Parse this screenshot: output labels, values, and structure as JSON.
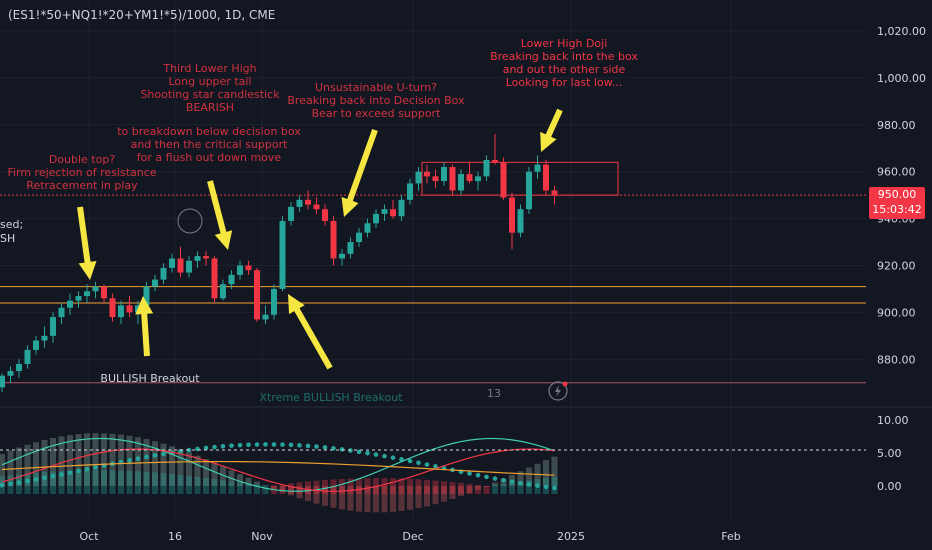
{
  "symbol": "(ES1!*50+NQ1!*20+YM1!*5)/1000, 1D, CME",
  "price_axis": [
    "1,020.00",
    "1,000.00",
    "980.00",
    "960.00",
    "940.00",
    "920.00",
    "900.00",
    "880.00"
  ],
  "price_badge": {
    "price": "950.00",
    "countdown": "15:03:42"
  },
  "osc_axis": [
    "10.00",
    "5.00",
    "0.00"
  ],
  "time_axis": [
    "Oct",
    "16",
    "Nov",
    "Dec",
    "2025",
    "Feb"
  ],
  "cut_text": [
    "sed;",
    "SH"
  ],
  "annotations": {
    "double_top": [
      "Double top?",
      "Firm rejection of resistance",
      "Retracement in play"
    ],
    "breakdown": [
      "to breakdown below decision box",
      "and then the critical support",
      "for a flush out down move"
    ],
    "third_lower_high": [
      "Third Lower High",
      "Long upper tail",
      "Shooting star candlestick",
      "BEARISH"
    ],
    "u_turn": [
      "Unsustainable U-turn?",
      "Breaking back into Decision Box",
      "Bear to exceed support"
    ],
    "doji": [
      "Lower High Doji",
      "Breaking back into the box",
      "and out the other side",
      "Looking for last low..."
    ],
    "bullish_breakout": "BULLISH Breakout",
    "xtreme_breakout": "Xtreme BULLISH Breakout",
    "bar_count": "13"
  },
  "colors": {
    "bull": "#26a69a",
    "bear": "#f23645",
    "level": "#f0a030",
    "arrow": "#f5e642",
    "bg": "#131722"
  },
  "chart_data": {
    "type": "candlestick",
    "ylim": [
      865,
      1025
    ],
    "levels": [
      911,
      904
    ],
    "decision_box": [
      950,
      964
    ],
    "candles": [
      [
        868,
        874,
        866,
        873
      ],
      [
        873,
        877,
        870,
        875
      ],
      [
        875,
        880,
        872,
        878
      ],
      [
        878,
        886,
        876,
        884
      ],
      [
        884,
        890,
        882,
        888
      ],
      [
        888,
        894,
        885,
        890
      ],
      [
        890,
        900,
        887,
        898
      ],
      [
        898,
        904,
        895,
        902
      ],
      [
        902,
        908,
        899,
        905
      ],
      [
        905,
        909,
        902,
        907
      ],
      [
        907,
        912,
        904,
        909
      ],
      [
        909,
        913,
        906,
        911
      ],
      [
        911,
        912,
        904,
        906
      ],
      [
        906,
        908,
        896,
        898
      ],
      [
        898,
        905,
        895,
        903
      ],
      [
        903,
        907,
        898,
        900
      ],
      [
        900,
        905,
        895,
        903
      ],
      [
        903,
        913,
        901,
        911
      ],
      [
        911,
        916,
        909,
        914
      ],
      [
        914,
        921,
        912,
        919
      ],
      [
        919,
        925,
        917,
        923
      ],
      [
        923,
        928,
        915,
        917
      ],
      [
        917,
        924,
        915,
        922
      ],
      [
        922,
        926,
        919,
        924
      ],
      [
        924,
        926,
        920,
        923
      ],
      [
        923,
        924,
        904,
        906
      ],
      [
        906,
        914,
        905,
        912
      ],
      [
        912,
        918,
        910,
        916
      ],
      [
        916,
        922,
        914,
        920
      ],
      [
        920,
        922,
        916,
        918
      ],
      [
        918,
        919,
        896,
        897
      ],
      [
        897,
        903,
        895,
        899
      ],
      [
        899,
        912,
        897,
        910
      ],
      [
        910,
        941,
        909,
        939
      ],
      [
        939,
        947,
        937,
        945
      ],
      [
        945,
        950,
        943,
        948
      ],
      [
        948,
        952,
        944,
        946
      ],
      [
        946,
        949,
        942,
        944
      ],
      [
        944,
        946,
        937,
        939
      ],
      [
        939,
        941,
        920,
        923
      ],
      [
        923,
        927,
        920,
        925
      ],
      [
        925,
        932,
        923,
        930
      ],
      [
        930,
        936,
        928,
        934
      ],
      [
        934,
        940,
        932,
        938
      ],
      [
        938,
        944,
        936,
        942
      ],
      [
        942,
        946,
        939,
        944
      ],
      [
        944,
        948,
        940,
        941
      ],
      [
        941,
        950,
        939,
        948
      ],
      [
        948,
        957,
        946,
        955
      ],
      [
        955,
        962,
        952,
        960
      ],
      [
        960,
        963,
        955,
        958
      ],
      [
        958,
        961,
        953,
        956
      ],
      [
        956,
        964,
        954,
        962
      ],
      [
        962,
        963,
        950,
        952
      ],
      [
        952,
        961,
        950,
        959
      ],
      [
        959,
        964,
        955,
        956
      ],
      [
        956,
        960,
        952,
        958
      ],
      [
        958,
        967,
        956,
        965
      ],
      [
        965,
        976,
        963,
        964
      ],
      [
        964,
        966,
        948,
        949
      ],
      [
        949,
        951,
        927,
        934
      ],
      [
        934,
        946,
        932,
        944
      ],
      [
        944,
        962,
        942,
        960
      ],
      [
        960,
        967,
        957,
        963
      ],
      [
        963,
        965,
        950,
        952
      ],
      [
        952,
        954,
        946,
        950
      ]
    ]
  }
}
